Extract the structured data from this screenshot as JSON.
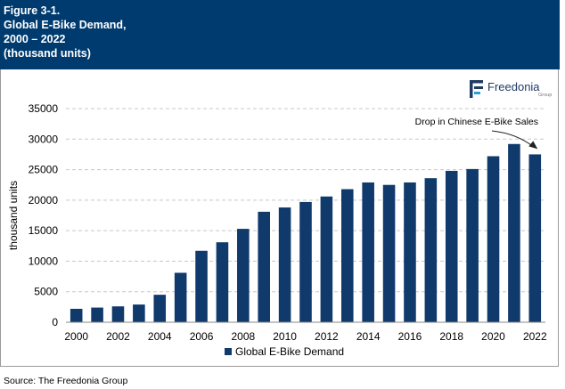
{
  "header": {
    "line1": "Figure 3-1.",
    "line2": "Global E-Bike Demand,",
    "line3": "2000 – 2022",
    "line4": "(thousand units)"
  },
  "logo": {
    "name": "Freedonia",
    "sub": "Group",
    "icon": "freedonia-f-logo-icon",
    "color": "#1f3b64",
    "accent": "#2a9fd6"
  },
  "source": "Source: The Freedonia Group",
  "colors": {
    "bar": "#0f3a6b",
    "header_bg": "#003b6f",
    "grid": "#c8c8c8"
  },
  "chart_data": {
    "type": "bar",
    "ylabel": "thousand units",
    "ylim": [
      0,
      35000
    ],
    "yticks": [
      0,
      5000,
      10000,
      15000,
      20000,
      25000,
      30000,
      35000
    ],
    "xtick_labels": [
      "2000",
      "2002",
      "2004",
      "2006",
      "2008",
      "2010",
      "2012",
      "2014",
      "2016",
      "2018",
      "2020",
      "2022"
    ],
    "grid": "horizontal dashed",
    "legend": "bottom-center",
    "categories": [
      "2000",
      "2001",
      "2002",
      "2003",
      "2004",
      "2005",
      "2006",
      "2007",
      "2008",
      "2009",
      "2010",
      "2011",
      "2012",
      "2013",
      "2014",
      "2015",
      "2016",
      "2017",
      "2018",
      "2019",
      "2020",
      "2021",
      "2022"
    ],
    "series": [
      {
        "name": "Global E-Bike Demand",
        "values": [
          2200,
          2400,
          2600,
          2900,
          4500,
          8100,
          11700,
          13100,
          15300,
          18100,
          18800,
          19700,
          20600,
          21800,
          22900,
          22500,
          22900,
          23600,
          24800,
          25100,
          27200,
          29200,
          27500
        ]
      }
    ],
    "annotations": [
      {
        "text": "Drop in Chinese E-Bike Sales",
        "target": "2022"
      }
    ]
  }
}
